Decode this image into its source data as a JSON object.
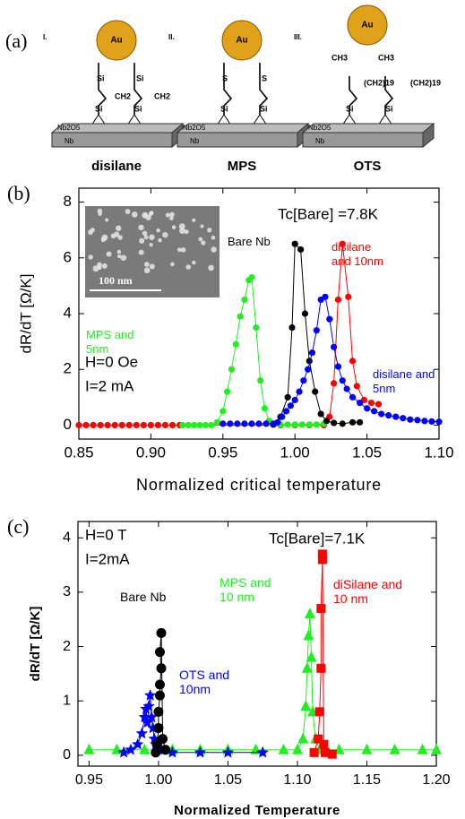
{
  "panel_a": {
    "label": "(a)",
    "modules": [
      {
        "numeral": "I.",
        "top": "Au",
        "title": "disilane",
        "labels": [
          "Si",
          "Si",
          "CH2",
          "CH2",
          "Si",
          "Si"
        ],
        "oxide": "Nb2O5",
        "metal": "Nb"
      },
      {
        "numeral": "II.",
        "top": "Au",
        "title": "MPS",
        "labels": [
          "S",
          "S",
          "Si",
          "Si"
        ],
        "oxide": "Nb2O5",
        "metal": "Nb"
      },
      {
        "numeral": "III.",
        "top": "Au",
        "title": "OTS",
        "labels": [
          "CH3",
          "CH3",
          "(CH2)19",
          "(CH2)19",
          "Si",
          "Si"
        ],
        "oxide": "Nb2O5",
        "metal": "Nb"
      }
    ]
  },
  "chart_data": [
    {
      "type": "scatter-line",
      "panel_label": "(b)",
      "x_label": "Normalized critical temperature",
      "y_label": "dR/dT [Ω/K]",
      "annotations": [
        "Tc[Bare] =7.8K",
        "H=0 Oe",
        "I=2 mA"
      ],
      "inset_label": "100 nm",
      "xlim": [
        0.85,
        1.1
      ],
      "ylim": [
        -0.5,
        8.5
      ],
      "xticks": [
        0.85,
        {
          "value": 0.9,
          "label": "0.90"
        },
        0.95,
        {
          "value": 1.0,
          "label": "1.00"
        },
        1.05,
        {
          "value": 1.1,
          "label": "1.10"
        }
      ],
      "yticks": [
        0,
        2,
        4,
        6,
        8
      ],
      "series": [
        {
          "name": "disilane and 10nm",
          "color": "#ff0000",
          "marker": "circle",
          "x": [
            0.85,
            0.855,
            0.86,
            0.865,
            0.87,
            0.875,
            0.88,
            0.885,
            0.89,
            0.895,
            0.9,
            0.905,
            0.91,
            0.915,
            0.92,
            0.99,
            1.0,
            1.01,
            1.02,
            1.024,
            1.027,
            1.03,
            1.033,
            1.037,
            1.04,
            1.043,
            1.048,
            1.053,
            1.058
          ],
          "values": [
            0,
            0,
            0,
            0,
            0,
            0,
            0,
            0,
            0,
            0,
            0,
            0,
            0,
            0,
            0,
            0,
            0,
            0,
            0,
            0.3,
            1.5,
            4.5,
            6.5,
            4.6,
            2.3,
            1.4,
            0.9,
            0.8,
            0.75
          ]
        },
        {
          "name": "MPS and 5nm",
          "color": "#22ee22",
          "marker": "circle",
          "x": [
            0.922,
            0.926,
            0.93,
            0.934,
            0.938,
            0.942,
            0.946,
            0.95,
            0.953,
            0.956,
            0.959,
            0.962,
            0.965,
            0.968,
            0.97,
            0.973,
            0.976,
            0.979,
            0.982,
            0.986,
            0.99,
            0.995,
            1.0,
            1.005,
            1.01,
            1.015,
            1.02
          ],
          "values": [
            0,
            0,
            0,
            0,
            0,
            0,
            0.1,
            0.5,
            1.2,
            2.0,
            2.9,
            3.9,
            4.5,
            5.2,
            5.3,
            3.5,
            1.6,
            0.6,
            0.15,
            0.05,
            0.02,
            0.02,
            0.02,
            0.02,
            0.02,
            0.02,
            0.05
          ]
        },
        {
          "name": "Bare Nb",
          "color": "#000000",
          "marker": "circle",
          "x": [
            0.985,
            0.99,
            0.995,
            0.998,
            1.0,
            1.004,
            1.007,
            1.01,
            1.014,
            1.018,
            1.022,
            1.027,
            1.033,
            1.04,
            1.045
          ],
          "values": [
            0.02,
            0.3,
            1.0,
            3.5,
            6.5,
            6.3,
            4.0,
            2.3,
            1.2,
            0.4,
            0.15,
            0.08,
            0.05,
            0.1,
            0.1
          ]
        },
        {
          "name": "disilane and 5nm",
          "color": "#0000ff",
          "marker": "circle",
          "x": [
            0.95,
            0.955,
            0.96,
            0.965,
            0.97,
            0.975,
            0.98,
            0.985,
            0.988,
            0.991,
            0.994,
            0.997,
            1.0,
            1.003,
            1.006,
            1.009,
            1.012,
            1.015,
            1.018,
            1.021,
            1.024,
            1.027,
            1.03,
            1.033,
            1.036,
            1.04,
            1.045,
            1.05,
            1.055,
            1.06,
            1.065,
            1.07,
            1.075,
            1.08,
            1.085,
            1.09,
            1.095,
            1.1
          ],
          "values": [
            0.05,
            0.05,
            0.05,
            0.05,
            0.05,
            0.05,
            0.05,
            0.05,
            0.1,
            0.3,
            0.5,
            0.7,
            0.9,
            1.2,
            1.6,
            2.0,
            2.6,
            3.4,
            4.5,
            4.6,
            3.8,
            2.8,
            2.1,
            1.6,
            1.3,
            1.0,
            0.8,
            0.6,
            0.5,
            0.4,
            0.35,
            0.3,
            0.25,
            0.2,
            0.18,
            0.15,
            0.13,
            0.12
          ]
        }
      ]
    },
    {
      "type": "scatter-line",
      "panel_label": "(c)",
      "x_label": "Normalized Temperature",
      "y_label": "dR/dT [Ω/K]",
      "annotations": [
        "H=0 T",
        "I=2mA",
        "Tc[Bare]=7.1K"
      ],
      "xlim": [
        0.942,
        1.2
      ],
      "ylim": [
        -0.2,
        4.3
      ],
      "xticks": [
        0.95,
        {
          "value": 1.0,
          "label": "1.00"
        },
        1.05,
        {
          "value": 1.1,
          "label": "1.10"
        },
        1.15,
        {
          "value": 1.2,
          "label": "1.20"
        }
      ],
      "yticks": [
        0,
        1,
        2,
        3,
        4
      ],
      "series": [
        {
          "name": "MPS and 10 nm",
          "color": "#22ee22",
          "marker": "triangle",
          "x": [
            0.95,
            0.97,
            0.99,
            1.01,
            1.03,
            1.05,
            1.07,
            1.09,
            1.1,
            1.104,
            1.106,
            1.107,
            1.108,
            1.109,
            1.11,
            1.111,
            1.113,
            1.116,
            1.13,
            1.15,
            1.17,
            1.19,
            1.2
          ],
          "values": [
            0.1,
            0.1,
            0.1,
            0.1,
            0.1,
            0.1,
            0.1,
            0.1,
            0.1,
            0.3,
            0.9,
            1.6,
            2.2,
            2.6,
            1.8,
            0.8,
            0.3,
            0.1,
            0.1,
            0.1,
            0.1,
            0.1,
            0.1
          ]
        },
        {
          "name": "OTS and 10nm",
          "color": "#0000ff",
          "marker": "star",
          "x": [
            0.975,
            0.98,
            0.985,
            0.988,
            0.99,
            0.991,
            0.992,
            0.993,
            0.994,
            0.995,
            0.996,
            0.997,
            0.998,
            0.999,
            1.0,
            1.01,
            1.03,
            1.05,
            1.075
          ],
          "values": [
            0.05,
            0.1,
            0.2,
            0.4,
            0.7,
            0.85,
            0.6,
            0.9,
            1.1,
            0.7,
            0.5,
            0.3,
            0.2,
            0.15,
            0.1,
            0.05,
            0.05,
            0.05,
            0.05
          ]
        },
        {
          "name": "Bare Nb",
          "color": "#000000",
          "marker": "circle",
          "x": [
            0.998,
            0.999,
            1.0,
            1.0,
            1.001,
            1.001,
            1.002,
            1.001,
            1.002,
            1.003,
            1.005
          ],
          "values": [
            0.05,
            0.2,
            0.5,
            0.8,
            1.1,
            1.3,
            1.6,
            1.9,
            2.25,
            0.3,
            0.1
          ]
        },
        {
          "name": "diSilane and 10 nm",
          "color": "#ff0000",
          "marker": "square",
          "x": [
            1.112,
            1.115,
            1.116,
            1.117,
            1.117,
            1.118,
            1.118,
            1.119,
            1.12,
            1.125
          ],
          "values": [
            0.05,
            0.3,
            0.8,
            1.6,
            2.7,
            3.6,
            3.7,
            0.2,
            0.05,
            0.02
          ]
        }
      ]
    }
  ]
}
